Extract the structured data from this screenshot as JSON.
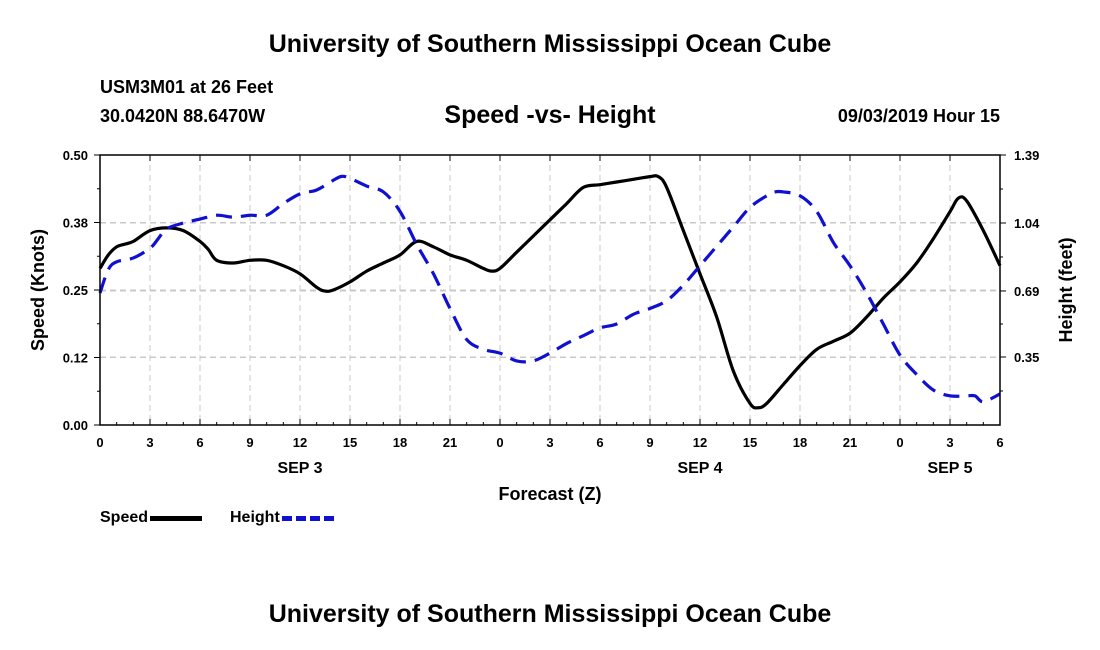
{
  "header": {
    "title": "University of Southern Mississippi Ocean Cube",
    "station_name": "USM3M01 at 26 Feet",
    "station_coords": "30.0420N 88.6470W",
    "subtitle": "Speed -vs- Height",
    "datetime": "09/03/2019 Hour 15"
  },
  "footer": {
    "title": "University of Southern Mississippi Ocean Cube"
  },
  "legend": {
    "speed_label": "Speed",
    "height_label": "Height"
  },
  "colors": {
    "speed": "#000000",
    "height": "#1010d0",
    "grid": "#c8c8c8"
  },
  "chart_data": {
    "type": "line",
    "title": "Speed -vs- Height",
    "xlabel": "Forecast (Z)",
    "ylabel": "Speed (Knots)",
    "y2label": "Height (feet)",
    "xlim": [
      0,
      54
    ],
    "ylim": [
      0,
      0.5
    ],
    "y2lim": [
      0,
      1.39
    ],
    "x_ticks": [
      0,
      3,
      6,
      9,
      12,
      15,
      18,
      21,
      24,
      27,
      30,
      33,
      36,
      39,
      42,
      45,
      48,
      51,
      54
    ],
    "x_tick_labels": [
      "0",
      "3",
      "6",
      "9",
      "12",
      "15",
      "18",
      "21",
      "0",
      "3",
      "6",
      "9",
      "12",
      "15",
      "18",
      "21",
      "0",
      "3",
      "6"
    ],
    "y_ticks": [
      0,
      0.125,
      0.25,
      0.375,
      0.5
    ],
    "y_tick_labels": [
      "0.00",
      "0.12",
      "0.25",
      "0.38",
      "0.50"
    ],
    "y2_ticks": [
      0.35,
      0.69,
      1.04,
      1.39
    ],
    "y2_tick_labels": [
      "0.35",
      "0.69",
      "1.04",
      "1.39"
    ],
    "day_labels": [
      {
        "x": 12,
        "label": "SEP 3"
      },
      {
        "x": 36,
        "label": "SEP 4"
      },
      {
        "x": 51,
        "label": "SEP 5"
      }
    ],
    "grid": true,
    "series": [
      {
        "name": "Speed",
        "axis": "left",
        "style": "solid",
        "x": [
          0,
          0.5,
          1,
          1.5,
          2,
          3,
          4,
          5,
          6,
          6.5,
          7,
          8,
          9,
          10,
          11,
          12,
          13,
          13.5,
          14,
          15,
          16,
          17,
          18,
          19,
          20,
          21,
          22,
          23,
          23.5,
          24,
          25,
          26,
          27,
          28,
          29,
          30,
          31,
          32,
          33,
          33.5,
          34,
          35,
          36,
          37,
          38,
          39,
          39.5,
          40,
          41,
          42,
          43,
          44,
          45,
          46,
          47,
          48,
          49,
          50,
          51,
          51.5,
          52,
          53,
          54
        ],
        "y": [
          0.29,
          0.315,
          0.33,
          0.335,
          0.34,
          0.36,
          0.365,
          0.36,
          0.34,
          0.325,
          0.305,
          0.3,
          0.305,
          0.305,
          0.295,
          0.28,
          0.255,
          0.248,
          0.25,
          0.265,
          0.285,
          0.3,
          0.315,
          0.34,
          0.33,
          0.315,
          0.305,
          0.29,
          0.285,
          0.29,
          0.32,
          0.35,
          0.38,
          0.41,
          0.44,
          0.445,
          0.45,
          0.455,
          0.46,
          0.46,
          0.44,
          0.36,
          0.28,
          0.2,
          0.1,
          0.04,
          0.032,
          0.04,
          0.075,
          0.11,
          0.14,
          0.155,
          0.17,
          0.2,
          0.235,
          0.265,
          0.3,
          0.345,
          0.395,
          0.42,
          0.415,
          0.36,
          0.295
        ]
      },
      {
        "name": "Height",
        "axis": "right",
        "style": "dashed",
        "x": [
          0,
          0.5,
          1,
          2,
          3,
          3.5,
          4,
          5,
          6,
          7,
          8,
          9,
          10,
          11,
          12,
          13,
          14,
          14.5,
          15,
          16,
          17,
          18,
          19,
          20,
          21,
          22,
          23,
          24,
          25,
          26,
          27,
          28,
          29,
          30,
          31,
          32,
          33,
          34,
          35,
          36,
          37,
          38,
          39,
          40,
          40.5,
          41,
          42,
          43,
          44,
          45,
          46,
          47,
          48,
          49,
          50,
          51,
          52,
          52.5,
          53,
          54
        ],
        "y": [
          0.68,
          0.8,
          0.84,
          0.86,
          0.91,
          0.96,
          1.01,
          1.04,
          1.06,
          1.08,
          1.07,
          1.08,
          1.08,
          1.14,
          1.19,
          1.21,
          1.26,
          1.28,
          1.27,
          1.23,
          1.2,
          1.1,
          0.93,
          0.78,
          0.6,
          0.44,
          0.39,
          0.37,
          0.33,
          0.33,
          0.37,
          0.42,
          0.46,
          0.5,
          0.52,
          0.57,
          0.6,
          0.64,
          0.72,
          0.82,
          0.92,
          1.02,
          1.12,
          1.18,
          1.2,
          1.2,
          1.18,
          1.1,
          0.94,
          0.82,
          0.68,
          0.52,
          0.36,
          0.26,
          0.18,
          0.15,
          0.15,
          0.15,
          0.12,
          0.16
        ]
      }
    ]
  }
}
